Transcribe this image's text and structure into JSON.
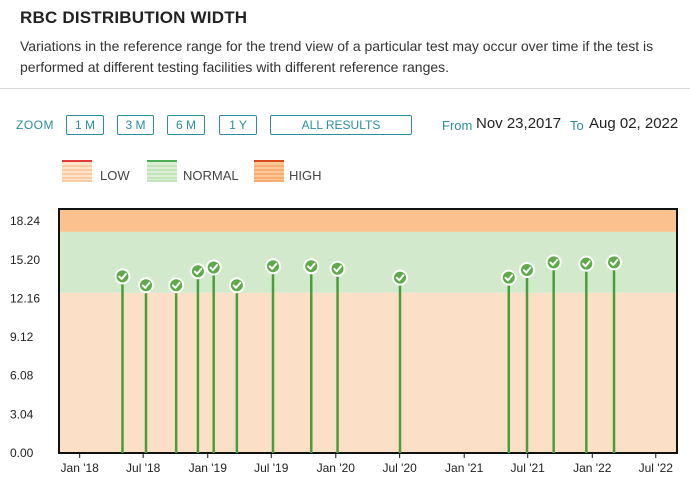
{
  "header": {
    "title": "RBC DISTRIBUTION WIDTH",
    "description": "Variations in the reference range for the trend view of a particular test may occur over time if the test is performed at different testing facilities with different reference ranges."
  },
  "toolbar": {
    "zoom_label": "ZOOM",
    "buttons": [
      "1 M",
      "3 M",
      "6 M",
      "1 Y",
      "ALL RESULTS"
    ],
    "from_label": "From",
    "from_value": "Nov 23,2017",
    "to_label": "To",
    "to_value": "Aug 02, 2022"
  },
  "legend": {
    "items": [
      {
        "label": "LOW",
        "color": "#f6b07a",
        "stripe": "#e23b3b"
      },
      {
        "label": "NORMAL",
        "color": "#a6d89a",
        "stripe": "#4caf50"
      },
      {
        "label": "HIGH",
        "color": "#f09050",
        "stripe": "#d94a1a"
      }
    ]
  },
  "colors": {
    "accent": "#2a8ea0",
    "low_band": "#fbdfc6",
    "normal_band": "#d2eacb",
    "high_band": "#fbc28f",
    "point": "#5cab48",
    "stem": "#4a9e3a"
  },
  "chart_data": {
    "type": "scatter",
    "y_ticks": [
      "18.24",
      "15.20",
      "12.16",
      "9.12",
      "6.08",
      "3.04",
      "0.00"
    ],
    "ylim": [
      0,
      19.2
    ],
    "x_ticks": [
      "Jan '18",
      "Jul '18",
      "Jan '19",
      "Jul '19",
      "Jan '20",
      "Jul '20",
      "Jan '21",
      "Jul '21",
      "Jan '22",
      "Jul '22"
    ],
    "x_tick_dates": [
      "2018-01-01",
      "2018-07-01",
      "2019-01-01",
      "2019-07-01",
      "2020-01-01",
      "2020-07-01",
      "2021-01-01",
      "2021-07-01",
      "2022-01-01",
      "2022-07-01"
    ],
    "xlim": [
      "2017-11-23",
      "2022-08-02"
    ],
    "ranges": {
      "low_below": 12.6,
      "normal": [
        12.6,
        17.4
      ],
      "high_above": 17.4
    },
    "points": [
      {
        "x": "2018-05-03",
        "y": 13.9
      },
      {
        "x": "2018-07-09",
        "y": 13.2
      },
      {
        "x": "2018-10-03",
        "y": 13.2
      },
      {
        "x": "2018-12-04",
        "y": 14.3
      },
      {
        "x": "2019-01-18",
        "y": 14.6
      },
      {
        "x": "2019-03-25",
        "y": 13.2
      },
      {
        "x": "2019-07-06",
        "y": 14.7
      },
      {
        "x": "2019-10-23",
        "y": 14.7
      },
      {
        "x": "2020-01-06",
        "y": 14.5
      },
      {
        "x": "2020-07-02",
        "y": 13.8
      },
      {
        "x": "2021-05-08",
        "y": 13.8
      },
      {
        "x": "2021-06-29",
        "y": 14.4
      },
      {
        "x": "2021-09-13",
        "y": 15.0
      },
      {
        "x": "2021-12-15",
        "y": 14.9
      },
      {
        "x": "2022-03-04",
        "y": 15.0
      }
    ]
  }
}
